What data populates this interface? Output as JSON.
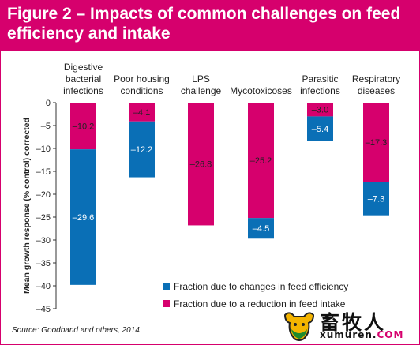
{
  "colors": {
    "accent": "#d6006d",
    "efficiency": "#0a6fb6",
    "intake": "#d6006d",
    "logo_yellow": "#f4b400"
  },
  "chart_data": {
    "type": "bar",
    "stacked": true,
    "title": "Figure 2 – Impacts of common challenges on feed efficiency and intake",
    "ylabel": "Mean growth response (% control) corrected",
    "xlabel": "",
    "ylim": [
      -45,
      0
    ],
    "yticks": [
      0,
      -5,
      -10,
      -15,
      -20,
      -25,
      -30,
      -35,
      -40,
      -45
    ],
    "grid": false,
    "legend_position": "bottom-right",
    "categories": [
      [
        "Digestive",
        "bacterial",
        "infections"
      ],
      [
        "Poor housing",
        "conditions"
      ],
      [
        "LPS",
        "challenge"
      ],
      [
        "Mycotoxicoses"
      ],
      [
        "Parasitic",
        "infections"
      ],
      [
        "Respiratory",
        "diseases"
      ]
    ],
    "series": [
      {
        "name": "Fraction due to a reduction in feed intake",
        "color": "#d6006d",
        "values": [
          -10.2,
          -4.1,
          -26.8,
          -25.2,
          -3.0,
          -17.3
        ],
        "labels": [
          "–10.2",
          "–4.1",
          "–26.8",
          "–25.2",
          "–3.0",
          "–17.3"
        ]
      },
      {
        "name": "Fraction due to changes in feed efficiency",
        "color": "#0a6fb6",
        "values": [
          -29.6,
          -12.2,
          0,
          -4.5,
          -5.4,
          -7.3
        ],
        "labels": [
          "–29.6",
          "–12.2",
          "",
          "–4.5",
          "–5.4",
          "–7.3"
        ]
      }
    ],
    "legend": [
      {
        "label": "Fraction due to changes in feed efficiency",
        "color": "#0a6fb6"
      },
      {
        "label": "Fraction due to a reduction in feed intake",
        "color": "#d6006d"
      }
    ],
    "source": "Source: Goodband and others, 2014"
  },
  "logo": {
    "text_cn": "畜牧人",
    "url_main": "xumuren.",
    "url_tld": "COM",
    "icon": "cow-head-icon"
  }
}
